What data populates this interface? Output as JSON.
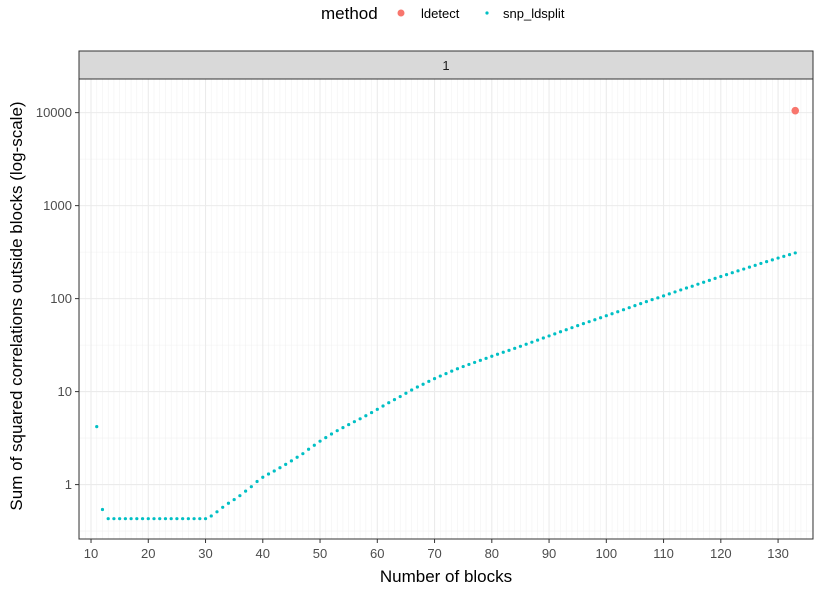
{
  "chart_data": {
    "type": "scatter",
    "xlabel": "Number of blocks",
    "ylabel": "Sum of squared correlations outside blocks (log-scale)",
    "y_scale": "log10",
    "xlim": [
      7.9,
      136.1
    ],
    "ylim": [
      0.26,
      23000
    ],
    "x_ticks": [
      10,
      20,
      30,
      40,
      50,
      60,
      70,
      80,
      90,
      100,
      110,
      120,
      130
    ],
    "y_ticks": [
      1,
      10,
      100,
      1000,
      10000
    ],
    "y_tick_labels": [
      "1",
      "10",
      "100",
      "1000",
      "10000"
    ],
    "grid": true,
    "facet_label": "1",
    "legend": {
      "title": "method",
      "position": "top"
    },
    "series": [
      {
        "name": "ldetect",
        "color": "#F8766D",
        "points": [
          [
            133,
            10500
          ]
        ]
      },
      {
        "name": "snp_ldsplit",
        "color": "#00BFC4",
        "points": [
          [
            11,
            4.2
          ],
          [
            12,
            0.54
          ],
          [
            13,
            0.43
          ],
          [
            14,
            0.43
          ],
          [
            15,
            0.43
          ],
          [
            16,
            0.43
          ],
          [
            17,
            0.43
          ],
          [
            18,
            0.43
          ],
          [
            19,
            0.43
          ],
          [
            20,
            0.43
          ],
          [
            21,
            0.43
          ],
          [
            22,
            0.43
          ],
          [
            23,
            0.43
          ],
          [
            24,
            0.43
          ],
          [
            25,
            0.43
          ],
          [
            26,
            0.43
          ],
          [
            27,
            0.43
          ],
          [
            28,
            0.43
          ],
          [
            29,
            0.43
          ],
          [
            30,
            0.43
          ],
          [
            31,
            0.46
          ],
          [
            32,
            0.51
          ],
          [
            33,
            0.57
          ],
          [
            34,
            0.63
          ],
          [
            35,
            0.69
          ],
          [
            36,
            0.76
          ],
          [
            37,
            0.85
          ],
          [
            38,
            0.95
          ],
          [
            39,
            1.08
          ],
          [
            40,
            1.2
          ],
          [
            41,
            1.3
          ],
          [
            42,
            1.4
          ],
          [
            43,
            1.52
          ],
          [
            44,
            1.65
          ],
          [
            45,
            1.8
          ],
          [
            46,
            1.97
          ],
          [
            47,
            2.15
          ],
          [
            48,
            2.4
          ],
          [
            49,
            2.65
          ],
          [
            50,
            2.93
          ],
          [
            51,
            3.2
          ],
          [
            52,
            3.5
          ],
          [
            53,
            3.8
          ],
          [
            54,
            4.1
          ],
          [
            55,
            4.42
          ],
          [
            56,
            4.75
          ],
          [
            57,
            5.1
          ],
          [
            58,
            5.5
          ],
          [
            59,
            5.95
          ],
          [
            60,
            6.45
          ],
          [
            61,
            7.0
          ],
          [
            62,
            7.6
          ],
          [
            63,
            8.2
          ],
          [
            64,
            8.85
          ],
          [
            65,
            9.6
          ],
          [
            66,
            10.4
          ],
          [
            67,
            11.2
          ],
          [
            68,
            12.0
          ],
          [
            69,
            12.9
          ],
          [
            70,
            13.8
          ],
          [
            71,
            14.7
          ],
          [
            72,
            15.6
          ],
          [
            73,
            16.6
          ],
          [
            74,
            17.6
          ],
          [
            75,
            18.6
          ],
          [
            76,
            19.6
          ],
          [
            77,
            20.6
          ],
          [
            78,
            21.7
          ],
          [
            79,
            22.8
          ],
          [
            80,
            24.0
          ],
          [
            81,
            25.2
          ],
          [
            82,
            26.5
          ],
          [
            83,
            27.8
          ],
          [
            84,
            29.2
          ],
          [
            85,
            30.7
          ],
          [
            86,
            32.3
          ],
          [
            87,
            34.0
          ],
          [
            88,
            35.8
          ],
          [
            89,
            37.7
          ],
          [
            90,
            39.7
          ],
          [
            91,
            41.8
          ],
          [
            92,
            44.0
          ],
          [
            93,
            46.3
          ],
          [
            94,
            48.7
          ],
          [
            95,
            51.2
          ],
          [
            96,
            53.8
          ],
          [
            97,
            56.5
          ],
          [
            98,
            59.3
          ],
          [
            99,
            62.3
          ],
          [
            100,
            65.5
          ],
          [
            101,
            68.8
          ],
          [
            102,
            72.3
          ],
          [
            103,
            76.0
          ],
          [
            104,
            79.9
          ],
          [
            105,
            84.0
          ],
          [
            106,
            88.3
          ],
          [
            107,
            92.8
          ],
          [
            108,
            97.5
          ],
          [
            109,
            102
          ],
          [
            110,
            107
          ],
          [
            111,
            112.5
          ],
          [
            112,
            118
          ],
          [
            113,
            124
          ],
          [
            114,
            130
          ],
          [
            115,
            136
          ],
          [
            116,
            143
          ],
          [
            117,
            150
          ],
          [
            118,
            157
          ],
          [
            119,
            165
          ],
          [
            120,
            173
          ],
          [
            121,
            181
          ],
          [
            122,
            190
          ],
          [
            123,
            199
          ],
          [
            124,
            208
          ],
          [
            125,
            218
          ],
          [
            126,
            228
          ],
          [
            127,
            239
          ],
          [
            128,
            250
          ],
          [
            129,
            261
          ],
          [
            130,
            273
          ],
          [
            131,
            285
          ],
          [
            132,
            297
          ],
          [
            133,
            310
          ]
        ]
      }
    ]
  }
}
